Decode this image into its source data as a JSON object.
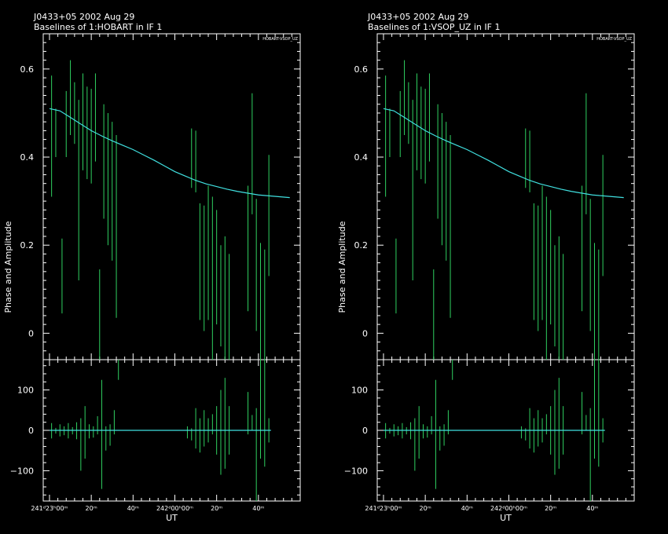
{
  "panels": [
    {
      "title": "J0433+05  2002 Aug 29",
      "subtitle": "Baselines of 1:HOBART in IF 1",
      "baseline": "HOBART-VSOP_UZ"
    },
    {
      "title": "J0433+05  2002 Aug 29",
      "subtitle": "Baselines of 1:VSOP_UZ in IF 1",
      "baseline": "HOBART-VSOP_UZ"
    }
  ],
  "ylabel": "Phase and Amplitude",
  "xlabel": "UT",
  "colors": {
    "data": "#2fd060",
    "model": "#40e0e0",
    "axes": "#ffffff",
    "background": "#000000"
  },
  "amp_ticks": [
    "0",
    "0.2",
    "0.4",
    "0.6"
  ],
  "phase_ticks": [
    "100",
    "0",
    "−100"
  ],
  "x_ticks": [
    {
      "t": 0,
      "label": "241ᵈ23ʰ00ᵐ"
    },
    {
      "t": 20,
      "label": "20ᵐ"
    },
    {
      "t": 40,
      "label": "40ᵐ"
    },
    {
      "t": 60,
      "label": "242ᵈ00ʰ00ᵐ"
    },
    {
      "t": 80,
      "label": "20ᵐ"
    },
    {
      "t": 100,
      "label": "40ᵐ"
    }
  ],
  "chart_data": {
    "type": "scatter",
    "x_unit": "minutes after 241d 23h 00m UT",
    "xlim": [
      -3,
      120
    ],
    "amp_ylim": [
      -0.06,
      0.68
    ],
    "phase_ylim": [
      -175,
      175
    ],
    "amplitude_model": {
      "t": [
        0,
        5,
        10,
        15,
        20,
        25,
        30,
        35,
        40,
        45,
        50,
        55,
        60,
        65,
        70,
        75,
        80,
        85,
        90,
        95,
        100,
        105,
        110,
        115
      ],
      "values": [
        0.51,
        0.505,
        0.49,
        0.475,
        0.46,
        0.448,
        0.437,
        0.427,
        0.417,
        0.405,
        0.393,
        0.38,
        0.367,
        0.357,
        0.347,
        0.339,
        0.333,
        0.327,
        0.322,
        0.318,
        0.314,
        0.312,
        0.31,
        0.308
      ]
    },
    "amplitude_points": [
      {
        "t": 1,
        "lo": 0.31,
        "hi": 0.585
      },
      {
        "t": 3,
        "lo": 0.4,
        "hi": 0.51
      },
      {
        "t": 6,
        "lo": 0.045,
        "hi": 0.215
      },
      {
        "t": 8,
        "lo": 0.4,
        "hi": 0.55
      },
      {
        "t": 10,
        "lo": 0.45,
        "hi": 0.62
      },
      {
        "t": 12,
        "lo": 0.43,
        "hi": 0.57
      },
      {
        "t": 14,
        "lo": 0.12,
        "hi": 0.53
      },
      {
        "t": 16,
        "lo": 0.37,
        "hi": 0.59
      },
      {
        "t": 18,
        "lo": 0.35,
        "hi": 0.56
      },
      {
        "t": 20,
        "lo": 0.34,
        "hi": 0.555
      },
      {
        "t": 22,
        "lo": 0.39,
        "hi": 0.59
      },
      {
        "t": 24,
        "lo": -0.06,
        "hi": 0.145
      },
      {
        "t": 26,
        "lo": 0.26,
        "hi": 0.52
      },
      {
        "t": 28,
        "lo": 0.2,
        "hi": 0.5
      },
      {
        "t": 30,
        "lo": 0.165,
        "hi": 0.48
      },
      {
        "t": 32,
        "lo": 0.035,
        "hi": 0.45
      },
      {
        "t": 68,
        "lo": 0.33,
        "hi": 0.465
      },
      {
        "t": 70,
        "lo": 0.32,
        "hi": 0.46
      },
      {
        "t": 72,
        "lo": 0.03,
        "hi": 0.295
      },
      {
        "t": 74,
        "lo": 0.005,
        "hi": 0.29
      },
      {
        "t": 76,
        "lo": 0.03,
        "hi": 0.335
      },
      {
        "t": 78,
        "lo": -0.06,
        "hi": 0.31
      },
      {
        "t": 80,
        "lo": 0.02,
        "hi": 0.28
      },
      {
        "t": 82,
        "lo": -0.03,
        "hi": 0.2
      },
      {
        "t": 84,
        "lo": -0.06,
        "hi": 0.22
      },
      {
        "t": 86,
        "lo": -0.06,
        "hi": 0.18
      },
      {
        "t": 95,
        "lo": 0.05,
        "hi": 0.335
      },
      {
        "t": 97,
        "lo": 0.27,
        "hi": 0.545
      },
      {
        "t": 99,
        "lo": 0.005,
        "hi": 0.305
      },
      {
        "t": 101,
        "lo": -0.06,
        "hi": 0.205
      },
      {
        "t": 103,
        "lo": -0.06,
        "hi": 0.19
      },
      {
        "t": 105,
        "lo": 0.13,
        "hi": 0.405
      }
    ],
    "phase_points": [
      {
        "t": 1,
        "lo": -20,
        "hi": 18
      },
      {
        "t": 3,
        "lo": -8,
        "hi": 6
      },
      {
        "t": 5,
        "lo": -15,
        "hi": 15
      },
      {
        "t": 7,
        "lo": -12,
        "hi": 10
      },
      {
        "t": 9,
        "lo": -20,
        "hi": 18
      },
      {
        "t": 11,
        "lo": -10,
        "hi": 8
      },
      {
        "t": 13,
        "lo": -22,
        "hi": 20
      },
      {
        "t": 15,
        "lo": -100,
        "hi": 30
      },
      {
        "t": 17,
        "lo": -70,
        "hi": 60
      },
      {
        "t": 19,
        "lo": -20,
        "hi": 15
      },
      {
        "t": 21,
        "lo": -18,
        "hi": 10
      },
      {
        "t": 23,
        "lo": -10,
        "hi": 35
      },
      {
        "t": 25,
        "lo": -145,
        "hi": 125
      },
      {
        "t": 27,
        "lo": -50,
        "hi": 10
      },
      {
        "t": 29,
        "lo": -38,
        "hi": 15
      },
      {
        "t": 31,
        "lo": -10,
        "hi": 50
      },
      {
        "t": 33,
        "lo": 125,
        "hi": 175
      },
      {
        "t": 66,
        "lo": -20,
        "hi": 10
      },
      {
        "t": 68,
        "lo": -25,
        "hi": 5
      },
      {
        "t": 70,
        "lo": -45,
        "hi": 55
      },
      {
        "t": 72,
        "lo": -55,
        "hi": 30
      },
      {
        "t": 74,
        "lo": -40,
        "hi": 50
      },
      {
        "t": 76,
        "lo": -30,
        "hi": 30
      },
      {
        "t": 78,
        "lo": -10,
        "hi": 40
      },
      {
        "t": 80,
        "lo": -60,
        "hi": 60
      },
      {
        "t": 82,
        "lo": -110,
        "hi": 100
      },
      {
        "t": 84,
        "lo": -95,
        "hi": 130
      },
      {
        "t": 86,
        "lo": -60,
        "hi": 60
      },
      {
        "t": 95,
        "lo": -10,
        "hi": 95
      },
      {
        "t": 97,
        "lo": 0,
        "hi": 38
      },
      {
        "t": 99,
        "lo": -175,
        "hi": 55
      },
      {
        "t": 101,
        "lo": -70,
        "hi": 175
      },
      {
        "t": 103,
        "lo": -90,
        "hi": 190
      },
      {
        "t": 105,
        "lo": -30,
        "hi": 30
      }
    ],
    "phase_model": {
      "t": [
        0,
        106
      ],
      "values": [
        0,
        0
      ]
    }
  }
}
